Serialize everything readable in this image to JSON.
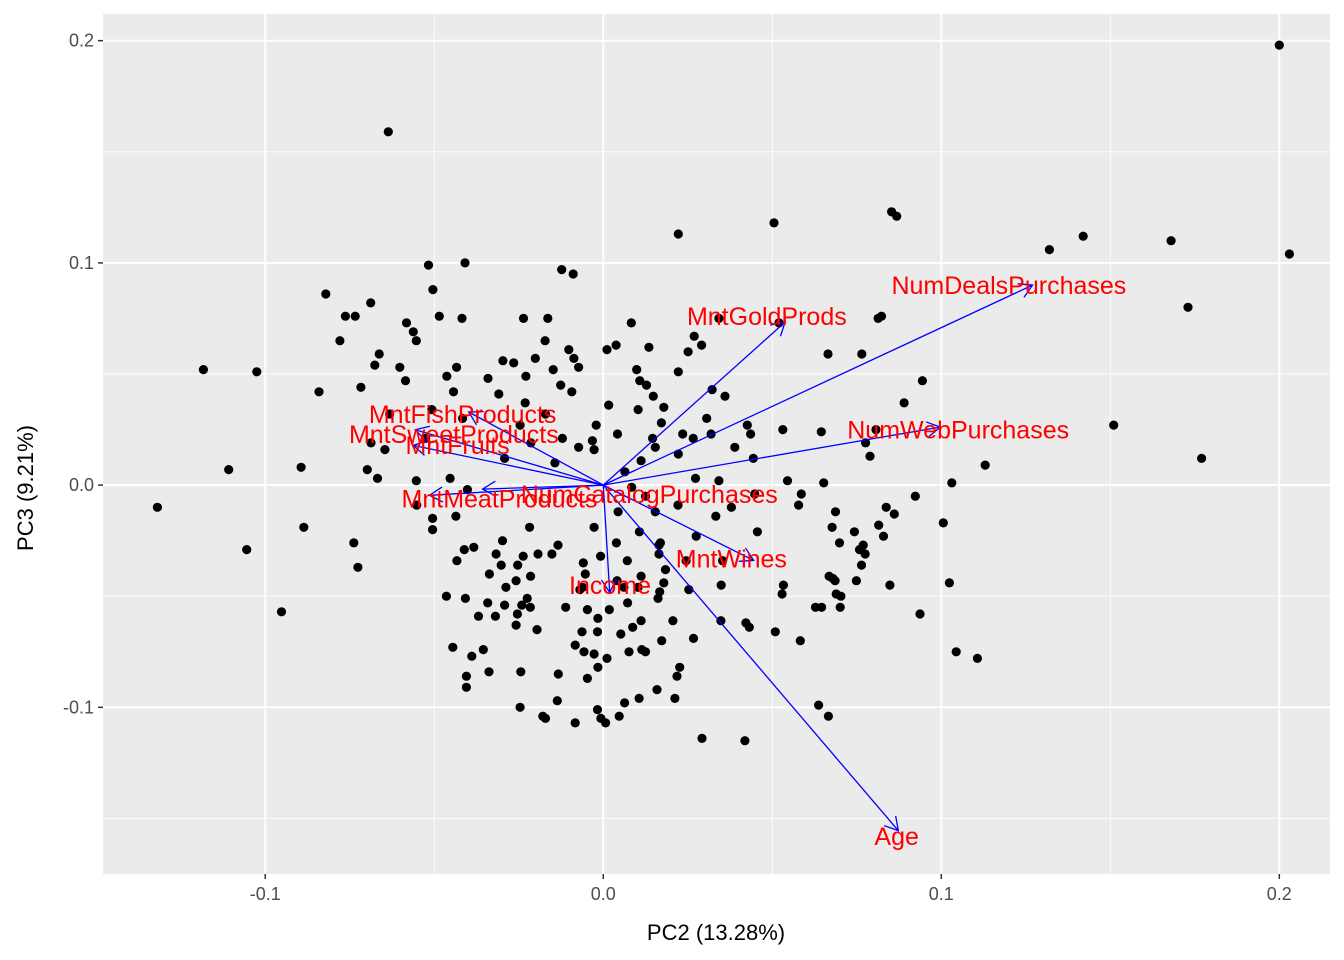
{
  "chart_data": {
    "type": "scatter",
    "title": "",
    "xlabel": "PC2 (13.28%)",
    "ylabel": "PC3 (9.21%)",
    "xlim": [
      -0.148,
      0.215
    ],
    "ylim": [
      -0.175,
      0.212
    ],
    "x_ticks": [
      {
        "value": -0.1,
        "label": "-0.1"
      },
      {
        "value": 0.0,
        "label": "0.0"
      },
      {
        "value": 0.1,
        "label": "0.1"
      },
      {
        "value": 0.2,
        "label": "0.2"
      }
    ],
    "y_ticks": [
      {
        "value": -0.1,
        "label": "-0.1"
      },
      {
        "value": 0.0,
        "label": "0.0"
      },
      {
        "value": 0.1,
        "label": "0.1"
      },
      {
        "value": 0.2,
        "label": "0.2"
      }
    ],
    "grid": true,
    "colors": {
      "panel": "#ebebeb",
      "grid": "#ffffff",
      "points": "#000000",
      "arrows": "#0000ff",
      "labels": "#ff0000"
    },
    "points": [
      [
        0.2,
        0.198
      ],
      [
        0.203,
        0.104
      ],
      [
        -0.0636,
        0.159
      ],
      [
        0.0853,
        0.123
      ],
      [
        0.0868,
        0.121
      ],
      [
        0.0505,
        0.118
      ],
      [
        0.0222,
        0.113
      ],
      [
        0.142,
        0.112
      ],
      [
        0.168,
        0.11
      ],
      [
        0.132,
        0.106
      ],
      [
        -0.0409,
        0.1
      ],
      [
        -0.0517,
        0.099
      ],
      [
        -0.0123,
        0.097
      ],
      [
        -0.0089,
        0.095
      ],
      [
        -0.0504,
        0.088
      ],
      [
        -0.0821,
        0.086
      ],
      [
        -0.0688,
        0.082
      ],
      [
        0.173,
        0.08
      ],
      [
        -0.0763,
        0.076
      ],
      [
        -0.0734,
        0.076
      ],
      [
        -0.0485,
        0.076
      ],
      [
        0.0823,
        0.076
      ],
      [
        -0.0418,
        0.075
      ],
      [
        -0.0236,
        0.075
      ],
      [
        -0.0164,
        0.075
      ],
      [
        0.0342,
        0.075
      ],
      [
        0.052,
        0.073
      ],
      [
        0.0813,
        0.075
      ],
      [
        0.0083,
        0.073
      ],
      [
        -0.0582,
        0.073
      ],
      [
        -0.0562,
        0.069
      ],
      [
        -0.0779,
        0.065
      ],
      [
        -0.0553,
        0.065
      ],
      [
        0.0269,
        0.067
      ],
      [
        -0.0172,
        0.065
      ],
      [
        0.0291,
        0.063
      ],
      [
        0.0038,
        0.063
      ],
      [
        0.0135,
        0.062
      ],
      [
        -0.0102,
        0.061
      ],
      [
        0.0011,
        0.061
      ],
      [
        0.0251,
        0.06
      ],
      [
        0.0665,
        0.059
      ],
      [
        0.0765,
        0.059
      ],
      [
        -0.0663,
        0.059
      ],
      [
        -0.0201,
        0.057
      ],
      [
        -0.0087,
        0.057
      ],
      [
        -0.0297,
        0.056
      ],
      [
        -0.0265,
        0.055
      ],
      [
        -0.0676,
        0.054
      ],
      [
        -0.0602,
        0.053
      ],
      [
        -0.0434,
        0.053
      ],
      [
        -0.0073,
        0.053
      ],
      [
        -0.0148,
        0.052
      ],
      [
        0.0099,
        0.052
      ],
      [
        0.0222,
        0.051
      ],
      [
        -0.1183,
        0.052
      ],
      [
        -0.1025,
        0.051
      ],
      [
        -0.0463,
        0.049
      ],
      [
        -0.0229,
        0.049
      ],
      [
        -0.0341,
        0.048
      ],
      [
        0.0108,
        0.047
      ],
      [
        -0.0585,
        0.047
      ],
      [
        0.0944,
        0.047
      ],
      [
        0.0128,
        0.045
      ],
      [
        -0.0126,
        0.045
      ],
      [
        -0.0717,
        0.044
      ],
      [
        0.0322,
        0.043
      ],
      [
        -0.0841,
        0.042
      ],
      [
        -0.0443,
        0.042
      ],
      [
        -0.0093,
        0.042
      ],
      [
        -0.0309,
        0.041
      ],
      [
        0.0148,
        0.04
      ],
      [
        0.036,
        0.04
      ],
      [
        0.089,
        0.037
      ],
      [
        -0.0231,
        0.037
      ],
      [
        0.0016,
        0.036
      ],
      [
        0.0179,
        0.035
      ],
      [
        -0.0507,
        0.034
      ],
      [
        0.0103,
        0.034
      ],
      [
        -0.0171,
        0.032
      ],
      [
        -0.0632,
        0.032
      ],
      [
        -0.0416,
        0.03
      ],
      [
        0.0306,
        0.03
      ],
      [
        0.0172,
        0.028
      ],
      [
        -0.0246,
        0.027
      ],
      [
        0.0426,
        0.027
      ],
      [
        -0.0021,
        0.027
      ],
      [
        0.0531,
        0.025
      ],
      [
        0.0645,
        0.024
      ],
      [
        0.0807,
        0.025
      ],
      [
        0.151,
        0.027
      ],
      [
        0.0319,
        0.023
      ],
      [
        0.0042,
        0.023
      ],
      [
        0.0235,
        0.023
      ],
      [
        -0.0121,
        0.021
      ],
      [
        -0.0526,
        0.021
      ],
      [
        0.0436,
        0.023
      ],
      [
        -0.0032,
        0.02
      ],
      [
        0.0146,
        0.021
      ],
      [
        0.0266,
        0.021
      ],
      [
        -0.0687,
        0.019
      ],
      [
        -0.0214,
        0.019
      ],
      [
        0.0154,
        0.017
      ],
      [
        -0.0073,
        0.017
      ],
      [
        0.0389,
        0.017
      ],
      [
        -0.0646,
        0.016
      ],
      [
        -0.0027,
        0.016
      ],
      [
        0.0222,
        0.014
      ],
      [
        0.0776,
        0.019
      ],
      [
        0.0789,
        0.013
      ],
      [
        0.177,
        0.012
      ],
      [
        0.0444,
        0.012
      ],
      [
        0.0112,
        0.011
      ],
      [
        -0.0292,
        0.012
      ],
      [
        -0.0143,
        0.01
      ],
      [
        -0.0894,
        0.008
      ],
      [
        0.113,
        0.009
      ],
      [
        -0.1108,
        0.007
      ],
      [
        -0.0698,
        0.007
      ],
      [
        0.0064,
        0.006
      ],
      [
        -0.0668,
        0.003
      ],
      [
        0.0273,
        0.003
      ],
      [
        -0.0553,
        0.002
      ],
      [
        -0.0453,
        0.003
      ],
      [
        0.0342,
        0.002
      ],
      [
        0.0545,
        0.002
      ],
      [
        0.0652,
        0.001
      ],
      [
        0.1031,
        0.001
      ],
      [
        0.0084,
        -0.001
      ],
      [
        -0.0402,
        -0.002
      ],
      [
        0.0448,
        -0.004
      ],
      [
        0.0586,
        -0.004
      ],
      [
        0.0125,
        -0.005
      ],
      [
        0.0923,
        -0.005
      ],
      [
        -0.1319,
        -0.01
      ],
      [
        -0.0552,
        -0.009
      ],
      [
        0.0221,
        -0.009
      ],
      [
        0.0578,
        -0.009
      ],
      [
        0.0379,
        -0.01
      ],
      [
        0.0837,
        -0.01
      ],
      [
        0.0154,
        -0.012
      ],
      [
        0.0687,
        -0.012
      ],
      [
        0.0044,
        -0.012
      ],
      [
        0.0861,
        -0.013
      ],
      [
        -0.0436,
        -0.014
      ],
      [
        0.0333,
        -0.014
      ],
      [
        -0.0505,
        -0.015
      ],
      [
        0.1006,
        -0.017
      ],
      [
        -0.0218,
        -0.019
      ],
      [
        -0.0027,
        -0.019
      ],
      [
        0.0677,
        -0.019
      ],
      [
        -0.0886,
        -0.019
      ],
      [
        -0.0505,
        -0.02
      ],
      [
        0.0815,
        -0.018
      ],
      [
        0.0107,
        -0.021
      ],
      [
        0.0456,
        -0.021
      ],
      [
        0.0743,
        -0.021
      ],
      [
        0.0275,
        -0.023
      ],
      [
        0.0829,
        -0.023
      ],
      [
        -0.0298,
        -0.025
      ],
      [
        0.0699,
        -0.026
      ],
      [
        0.0039,
        -0.026
      ],
      [
        0.0169,
        -0.026
      ],
      [
        -0.0134,
        -0.027
      ],
      [
        -0.0738,
        -0.026
      ],
      [
        0.0165,
        -0.027
      ],
      [
        0.0769,
        -0.027
      ],
      [
        -0.0383,
        -0.028
      ],
      [
        -0.1055,
        -0.029
      ],
      [
        -0.0411,
        -0.029
      ],
      [
        0.0758,
        -0.029
      ],
      [
        0.0165,
        -0.031
      ],
      [
        -0.0193,
        -0.031
      ],
      [
        -0.0317,
        -0.031
      ],
      [
        -0.0237,
        -0.032
      ],
      [
        -0.0152,
        -0.031
      ],
      [
        0.0775,
        -0.031
      ],
      [
        -0.0008,
        -0.032
      ],
      [
        0.0071,
        -0.034
      ],
      [
        0.0353,
        -0.034
      ],
      [
        -0.0433,
        -0.034
      ],
      [
        0.0245,
        -0.034
      ],
      [
        -0.0059,
        -0.035
      ],
      [
        -0.0726,
        -0.037
      ],
      [
        -0.0253,
        -0.036
      ],
      [
        -0.0302,
        -0.036
      ],
      [
        0.0764,
        -0.036
      ],
      [
        0.0184,
        -0.038
      ],
      [
        -0.0337,
        -0.04
      ],
      [
        -0.0053,
        -0.04
      ],
      [
        0.0112,
        -0.041
      ],
      [
        -0.0215,
        -0.041
      ],
      [
        0.0668,
        -0.041
      ],
      [
        0.0679,
        -0.042
      ],
      [
        0.0041,
        -0.043
      ],
      [
        0.0686,
        -0.043
      ],
      [
        -0.0258,
        -0.043
      ],
      [
        0.0749,
        -0.043
      ],
      [
        0.0179,
        -0.044
      ],
      [
        0.0349,
        -0.045
      ],
      [
        0.0103,
        -0.046
      ],
      [
        -0.0288,
        -0.046
      ],
      [
        -0.0061,
        -0.046
      ],
      [
        0.0061,
        -0.046
      ],
      [
        0.0533,
        -0.045
      ],
      [
        0.0848,
        -0.045
      ],
      [
        0.1024,
        -0.044
      ],
      [
        0.0253,
        -0.047
      ],
      [
        -0.0069,
        -0.047
      ],
      [
        0.0167,
        -0.048
      ],
      [
        0.0689,
        -0.049
      ],
      [
        0.0529,
        -0.049
      ],
      [
        0.0703,
        -0.05
      ],
      [
        -0.0464,
        -0.05
      ],
      [
        -0.0408,
        -0.051
      ],
      [
        -0.0225,
        -0.051
      ],
      [
        0.0162,
        -0.051
      ],
      [
        0.0072,
        -0.053
      ],
      [
        -0.0342,
        -0.053
      ],
      [
        -0.0241,
        -0.054
      ],
      [
        0.0646,
        -0.055
      ],
      [
        0.0628,
        -0.055
      ],
      [
        0.0701,
        -0.055
      ],
      [
        -0.0292,
        -0.054
      ],
      [
        -0.0216,
        -0.055
      ],
      [
        -0.0111,
        -0.055
      ],
      [
        -0.0047,
        -0.056
      ],
      [
        0.0018,
        -0.056
      ],
      [
        -0.0952,
        -0.057
      ],
      [
        -0.0254,
        -0.058
      ],
      [
        -0.0319,
        -0.059
      ],
      [
        -0.0369,
        -0.059
      ],
      [
        -0.0016,
        -0.06
      ],
      [
        0.0206,
        -0.061
      ],
      [
        0.0348,
        -0.061
      ],
      [
        0.0422,
        -0.062
      ],
      [
        0.0937,
        -0.058
      ],
      [
        0.0112,
        -0.061
      ],
      [
        -0.0258,
        -0.063
      ],
      [
        0.0087,
        -0.064
      ],
      [
        0.0432,
        -0.064
      ],
      [
        -0.0196,
        -0.065
      ],
      [
        -0.0063,
        -0.066
      ],
      [
        -0.0017,
        -0.066
      ],
      [
        0.0509,
        -0.066
      ],
      [
        0.0052,
        -0.067
      ],
      [
        0.0267,
        -0.069
      ],
      [
        0.0583,
        -0.07
      ],
      [
        0.0173,
        -0.07
      ],
      [
        -0.0083,
        -0.072
      ],
      [
        -0.0445,
        -0.073
      ],
      [
        0.0114,
        -0.074
      ],
      [
        0.0125,
        -0.075
      ],
      [
        0.0076,
        -0.075
      ],
      [
        -0.0355,
        -0.074
      ],
      [
        0.1044,
        -0.075
      ],
      [
        -0.0057,
        -0.075
      ],
      [
        -0.0027,
        -0.076
      ],
      [
        -0.0389,
        -0.077
      ],
      [
        0.1107,
        -0.078
      ],
      [
        0.0011,
        -0.078
      ],
      [
        0.0226,
        -0.082
      ],
      [
        -0.0016,
        -0.082
      ],
      [
        -0.0244,
        -0.084
      ],
      [
        -0.0338,
        -0.084
      ],
      [
        -0.0133,
        -0.085
      ],
      [
        0.0218,
        -0.086
      ],
      [
        -0.0405,
        -0.086
      ],
      [
        -0.0047,
        -0.087
      ],
      [
        -0.0405,
        -0.091
      ],
      [
        0.0159,
        -0.092
      ],
      [
        0.0212,
        -0.096
      ],
      [
        0.0106,
        -0.096
      ],
      [
        -0.0136,
        -0.097
      ],
      [
        0.0063,
        -0.098
      ],
      [
        0.0637,
        -0.099
      ],
      [
        -0.0246,
        -0.1
      ],
      [
        -0.0017,
        -0.101
      ],
      [
        -0.0179,
        -0.104
      ],
      [
        -0.0171,
        -0.105
      ],
      [
        0.0666,
        -0.104
      ],
      [
        0.0047,
        -0.104
      ],
      [
        -0.0007,
        -0.105
      ],
      [
        0.0007,
        -0.107
      ],
      [
        -0.0083,
        -0.107
      ],
      [
        0.0292,
        -0.114
      ],
      [
        0.0419,
        -0.115
      ]
    ],
    "vectors": [
      {
        "name": "NumDealsPurchases",
        "end": [
          0.127,
          0.09
        ],
        "label_pos": [
          0.12,
          0.089
        ]
      },
      {
        "name": "MntGoldProds",
        "end": [
          0.0538,
          0.0734
        ],
        "label_pos": [
          0.0484,
          0.075
        ]
      },
      {
        "name": "NumWebPurchases",
        "end": [
          0.0997,
          0.0261
        ],
        "label_pos": [
          0.105,
          0.024
        ]
      },
      {
        "name": "MntFishProducts",
        "end": [
          -0.0398,
          0.0329
        ],
        "label_pos": [
          -0.0416,
          0.031
        ]
      },
      {
        "name": "MntSweetProducts",
        "end": [
          -0.0556,
          0.0249
        ],
        "label_pos": [
          -0.0442,
          0.022
        ]
      },
      {
        "name": "MntFruits",
        "end": [
          -0.0562,
          0.0179
        ],
        "label_pos": [
          -0.0431,
          0.017
        ]
      },
      {
        "name": "NumCatalogPurchases",
        "end": [
          -0.0357,
          -0.0018
        ],
        "label_pos": [
          0.0136,
          -0.005
        ]
      },
      {
        "name": "MntMeatProducts",
        "end": [
          -0.0514,
          -0.0046
        ],
        "label_pos": [
          -0.0307,
          -0.007
        ]
      },
      {
        "name": "MntWines",
        "end": [
          0.0445,
          -0.0339
        ],
        "label_pos": [
          0.0379,
          -0.034
        ]
      },
      {
        "name": "Income",
        "end": [
          0.0019,
          -0.0483
        ],
        "label_pos": [
          0.002,
          -0.046
        ]
      },
      {
        "name": "Age",
        "end": [
          0.0873,
          -0.1555
        ],
        "label_pos": [
          0.0868,
          -0.159
        ]
      }
    ]
  }
}
